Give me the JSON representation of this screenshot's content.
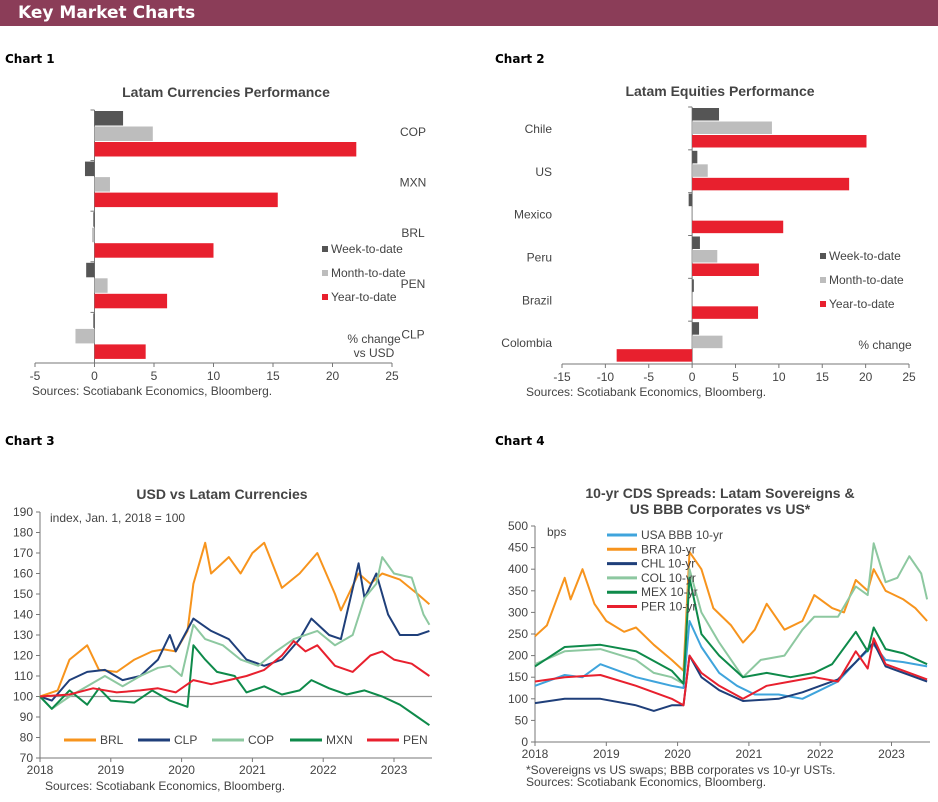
{
  "header": {
    "title": "Key Market Charts"
  },
  "labels": [
    "Chart 1",
    "Chart 2",
    "Chart 3",
    "Chart 4"
  ],
  "colors": {
    "header": "#8B3D58",
    "week": "#555555",
    "month": "#BDBDBD",
    "year": "#E8202E"
  },
  "chart_data": [
    {
      "type": "bar",
      "orientation": "horizontal",
      "title": "Latam  Currencies Performance",
      "categories": [
        "COP",
        "MXN",
        "BRL",
        "PEN",
        "CLP"
      ],
      "series": [
        {
          "name": "Week-to-date",
          "values": [
            2.4,
            -0.8,
            -0.1,
            -0.7,
            -0.1
          ]
        },
        {
          "name": "Month-to-date",
          "values": [
            4.9,
            1.3,
            -0.2,
            1.1,
            -1.6
          ]
        },
        {
          "name": "Year-to-date",
          "values": [
            22.0,
            15.4,
            10.0,
            6.1,
            4.3
          ]
        }
      ],
      "xlim": [
        -5,
        25
      ],
      "xticks": [
        "-5",
        "0",
        "5",
        "10",
        "15",
        "20",
        "25"
      ],
      "unit_note": [
        "% change",
        "vs USD"
      ],
      "legend": "right",
      "source": "Sources: Scotiabank Economics, Bloomberg."
    },
    {
      "type": "bar",
      "orientation": "horizontal",
      "title": "Latam Equities Performance",
      "categories": [
        "Chile",
        "US",
        "Mexico",
        "Peru",
        "Brazil",
        "Colombia"
      ],
      "series": [
        {
          "name": "Week-to-date",
          "values": [
            3.1,
            0.6,
            -0.4,
            0.9,
            0.2,
            0.8
          ]
        },
        {
          "name": "Month-to-date",
          "values": [
            9.2,
            1.8,
            0.0,
            2.9,
            0.0,
            3.5
          ]
        },
        {
          "name": "Year-to-date",
          "values": [
            20.1,
            18.1,
            10.5,
            7.7,
            7.6,
            -8.7
          ]
        }
      ],
      "xlim": [
        -15,
        25
      ],
      "xticks": [
        "-15",
        "-10",
        "-5",
        "0",
        "5",
        "10",
        "15",
        "20",
        "25"
      ],
      "unit_note": [
        "% change"
      ],
      "legend": "right",
      "source": "Sources: Scotiabank Economics, Bloomberg."
    },
    {
      "type": "line",
      "title": "USD vs Latam Currencies",
      "annotation": "index, Jan. 1, 2018 = 100",
      "ylim": [
        70,
        190
      ],
      "yticks": [
        "70",
        "80",
        "90",
        "100",
        "110",
        "120",
        "130",
        "140",
        "150",
        "160",
        "170",
        "180",
        "190"
      ],
      "xticks": [
        "2018",
        "2019",
        "2020",
        "2021",
        "2022",
        "2023"
      ],
      "reference_line": 100,
      "legend": "bottom",
      "series": [
        {
          "name": "BRL",
          "color": "#F7941D",
          "x": [
            "2018-01",
            "2018-04",
            "2018-06",
            "2018-09",
            "2018-11",
            "2019-02",
            "2019-05",
            "2019-08",
            "2019-10",
            "2019-12",
            "2020-02",
            "2020-03",
            "2020-05",
            "2020-06",
            "2020-09",
            "2020-11",
            "2021-01",
            "2021-03",
            "2021-06",
            "2021-09",
            "2021-12",
            "2022-03",
            "2022-04",
            "2022-07",
            "2022-09",
            "2022-11",
            "2023-02",
            "2023-05",
            "2023-07"
          ],
          "y": [
            100,
            103,
            118,
            125,
            113,
            112,
            118,
            122,
            123,
            122,
            132,
            155,
            175,
            160,
            168,
            160,
            170,
            175,
            153,
            160,
            170,
            150,
            142,
            160,
            155,
            160,
            157,
            150,
            145
          ]
        },
        {
          "name": "CLP",
          "color": "#1F3F7A",
          "x": [
            "2018-01",
            "2018-03",
            "2018-06",
            "2018-09",
            "2018-12",
            "2019-03",
            "2019-06",
            "2019-09",
            "2019-11",
            "2019-12",
            "2020-03",
            "2020-06",
            "2020-09",
            "2020-12",
            "2021-03",
            "2021-06",
            "2021-09",
            "2021-11",
            "2022-02",
            "2022-04",
            "2022-07",
            "2022-08",
            "2022-10",
            "2022-12",
            "2023-02",
            "2023-05",
            "2023-07"
          ],
          "y": [
            100,
            98,
            108,
            112,
            113,
            108,
            110,
            118,
            130,
            122,
            138,
            132,
            128,
            118,
            115,
            118,
            128,
            138,
            130,
            128,
            165,
            148,
            160,
            140,
            130,
            130,
            132
          ]
        },
        {
          "name": "COP",
          "color": "#8DC8A0",
          "x": [
            "2018-01",
            "2018-03",
            "2018-06",
            "2018-09",
            "2018-12",
            "2019-03",
            "2019-06",
            "2019-09",
            "2019-11",
            "2020-01",
            "2020-03",
            "2020-05",
            "2020-08",
            "2020-11",
            "2021-02",
            "2021-05",
            "2021-08",
            "2021-12",
            "2022-03",
            "2022-06",
            "2022-08",
            "2022-10",
            "2022-11",
            "2023-01",
            "2023-04",
            "2023-06",
            "2023-07"
          ],
          "y": [
            100,
            94,
            100,
            105,
            110,
            105,
            110,
            114,
            115,
            110,
            135,
            128,
            125,
            118,
            115,
            122,
            128,
            132,
            125,
            130,
            148,
            155,
            168,
            160,
            158,
            140,
            135
          ]
        },
        {
          "name": "MXN",
          "color": "#0E8A4A",
          "x": [
            "2018-01",
            "2018-03",
            "2018-06",
            "2018-09",
            "2018-11",
            "2019-01",
            "2019-05",
            "2019-08",
            "2019-11",
            "2020-02",
            "2020-03",
            "2020-05",
            "2020-07",
            "2020-10",
            "2020-12",
            "2021-03",
            "2021-06",
            "2021-09",
            "2021-11",
            "2022-02",
            "2022-05",
            "2022-08",
            "2022-11",
            "2023-02",
            "2023-05",
            "2023-07"
          ],
          "y": [
            100,
            94,
            103,
            96,
            104,
            98,
            97,
            103,
            98,
            95,
            125,
            118,
            112,
            110,
            102,
            105,
            101,
            103,
            108,
            104,
            101,
            103,
            100,
            96,
            90,
            86
          ]
        },
        {
          "name": "PEN",
          "color": "#E8202E",
          "x": [
            "2018-01",
            "2018-06",
            "2018-10",
            "2019-02",
            "2019-06",
            "2019-09",
            "2019-12",
            "2020-03",
            "2020-06",
            "2020-09",
            "2020-12",
            "2021-03",
            "2021-06",
            "2021-08",
            "2021-10",
            "2021-12",
            "2022-03",
            "2022-06",
            "2022-09",
            "2022-11",
            "2023-01",
            "2023-04",
            "2023-07"
          ],
          "y": [
            100,
            101,
            104,
            102,
            103,
            104,
            102,
            108,
            106,
            108,
            110,
            113,
            120,
            127,
            122,
            125,
            115,
            112,
            120,
            122,
            118,
            116,
            110
          ]
        }
      ],
      "source": "Sources: Scotiabank Economics, Bloomberg."
    },
    {
      "type": "line",
      "title": [
        "10-yr CDS Spreads: Latam Sovereigns &",
        "US BBB Corporates vs US*"
      ],
      "ylabel": "bps",
      "ylim": [
        0,
        500
      ],
      "yticks": [
        "0",
        "50",
        "100",
        "150",
        "200",
        "250",
        "300",
        "350",
        "400",
        "450",
        "500"
      ],
      "xticks": [
        "2018",
        "2019",
        "2020",
        "2021",
        "2022",
        "2023"
      ],
      "legend": "top-left",
      "series": [
        {
          "name": "USA BBB 10-yr",
          "color": "#3FA4DC",
          "x": [
            "2018-01",
            "2018-06",
            "2018-09",
            "2018-12",
            "2019-03",
            "2019-06",
            "2019-09",
            "2019-12",
            "2020-02",
            "2020-03",
            "2020-05",
            "2020-08",
            "2020-11",
            "2021-02",
            "2021-06",
            "2021-10",
            "2022-01",
            "2022-04",
            "2022-07",
            "2022-10",
            "2022-12",
            "2023-03",
            "2023-07"
          ],
          "y": [
            130,
            155,
            150,
            180,
            165,
            150,
            140,
            130,
            125,
            280,
            220,
            160,
            130,
            110,
            110,
            100,
            120,
            140,
            185,
            225,
            190,
            185,
            175
          ]
        },
        {
          "name": "BRA 10-yr",
          "color": "#F7941D",
          "x": [
            "2018-01",
            "2018-03",
            "2018-06",
            "2018-07",
            "2018-09",
            "2018-11",
            "2019-01",
            "2019-04",
            "2019-06",
            "2019-09",
            "2019-12",
            "2020-02",
            "2020-03",
            "2020-05",
            "2020-07",
            "2020-10",
            "2020-12",
            "2021-02",
            "2021-04",
            "2021-07",
            "2021-10",
            "2021-12",
            "2022-03",
            "2022-05",
            "2022-07",
            "2022-09",
            "2022-10",
            "2022-12",
            "2023-03",
            "2023-05",
            "2023-07"
          ],
          "y": [
            245,
            270,
            380,
            330,
            400,
            320,
            280,
            255,
            265,
            225,
            190,
            165,
            440,
            400,
            310,
            270,
            230,
            260,
            320,
            260,
            280,
            340,
            310,
            300,
            375,
            350,
            400,
            350,
            330,
            310,
            280
          ]
        },
        {
          "name": "CHL 10-yr",
          "color": "#1F3F7A",
          "x": [
            "2018-01",
            "2018-06",
            "2018-12",
            "2019-06",
            "2019-09",
            "2019-12",
            "2020-02",
            "2020-03",
            "2020-05",
            "2020-08",
            "2020-12",
            "2021-06",
            "2021-10",
            "2022-01",
            "2022-04",
            "2022-07",
            "2022-10",
            "2022-12",
            "2023-04",
            "2023-07"
          ],
          "y": [
            90,
            100,
            100,
            85,
            72,
            85,
            85,
            200,
            150,
            120,
            95,
            100,
            115,
            130,
            145,
            185,
            230,
            175,
            155,
            140
          ]
        },
        {
          "name": "COL 10-yr",
          "color": "#8DC8A0",
          "x": [
            "2018-01",
            "2018-06",
            "2018-12",
            "2019-06",
            "2019-09",
            "2019-12",
            "2020-02",
            "2020-03",
            "2020-05",
            "2020-08",
            "2020-12",
            "2021-03",
            "2021-07",
            "2021-10",
            "2021-12",
            "2022-04",
            "2022-07",
            "2022-09",
            "2022-10",
            "2022-12",
            "2023-02",
            "2023-04",
            "2023-06",
            "2023-07"
          ],
          "y": [
            180,
            210,
            215,
            190,
            160,
            150,
            135,
            400,
            300,
            230,
            150,
            190,
            200,
            260,
            290,
            290,
            360,
            340,
            460,
            370,
            380,
            430,
            390,
            330
          ]
        },
        {
          "name": "MEX 10-yr",
          "color": "#0E8A4A",
          "x": [
            "2018-01",
            "2018-06",
            "2018-12",
            "2019-06",
            "2019-12",
            "2020-02",
            "2020-03",
            "2020-05",
            "2020-08",
            "2020-12",
            "2021-04",
            "2021-08",
            "2021-12",
            "2022-03",
            "2022-07",
            "2022-09",
            "2022-10",
            "2022-12",
            "2023-03",
            "2023-07"
          ],
          "y": [
            175,
            220,
            225,
            210,
            165,
            135,
            380,
            250,
            200,
            150,
            160,
            150,
            160,
            180,
            255,
            210,
            265,
            215,
            205,
            180
          ]
        },
        {
          "name": "PER 10-yr",
          "color": "#E8202E",
          "x": [
            "2018-01",
            "2018-06",
            "2018-12",
            "2019-06",
            "2019-12",
            "2020-02",
            "2020-03",
            "2020-05",
            "2020-08",
            "2020-12",
            "2021-04",
            "2021-08",
            "2021-12",
            "2022-04",
            "2022-07",
            "2022-09",
            "2022-10",
            "2022-12",
            "2023-03",
            "2023-07"
          ],
          "y": [
            140,
            150,
            155,
            130,
            100,
            85,
            200,
            160,
            130,
            100,
            130,
            140,
            150,
            140,
            210,
            170,
            240,
            180,
            165,
            145
          ]
        }
      ],
      "footnote": "*Sovereigns vs US swaps; BBB corporates vs 10-yr USTs.",
      "source": "Sources: Scotiabank Economics, Bloomberg."
    }
  ]
}
